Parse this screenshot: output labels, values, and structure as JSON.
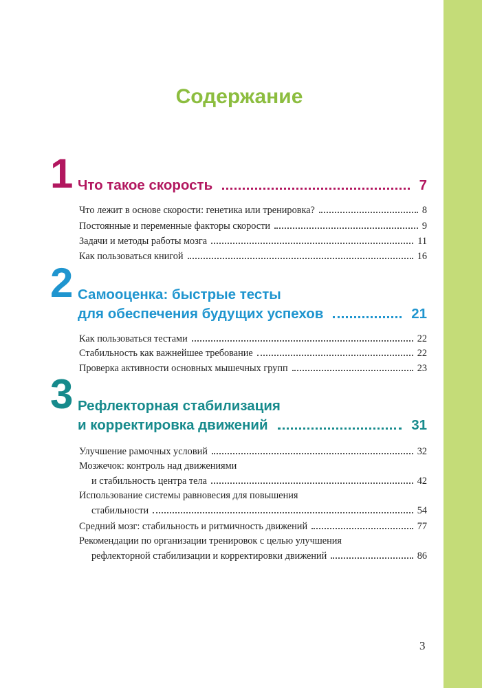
{
  "title": "Содержание",
  "chapters": [
    {
      "number": "1",
      "title_lines": [
        "Что такое скорость"
      ],
      "page": "7",
      "color": "#b2175f",
      "entries": [
        {
          "lines": [
            "Что лежит в основе скорости: генетика или тренировка?"
          ],
          "page": "8"
        },
        {
          "lines": [
            "Постоянные и переменные факторы скорости"
          ],
          "page": "9"
        },
        {
          "lines": [
            "Задачи и методы работы мозга"
          ],
          "page": "11"
        },
        {
          "lines": [
            "Как пользоваться книгой"
          ],
          "page": "16"
        }
      ]
    },
    {
      "number": "2",
      "title_lines": [
        "Самооценка: быстрые тесты",
        "для обеспечения будущих успехов"
      ],
      "page": "21",
      "color": "#1f95cf",
      "entries": [
        {
          "lines": [
            "Как пользоваться тестами"
          ],
          "page": "22"
        },
        {
          "lines": [
            "Стабильность как важнейшее требование"
          ],
          "page": "22"
        },
        {
          "lines": [
            "Проверка активности основных мышечных групп"
          ],
          "page": "23"
        }
      ]
    },
    {
      "number": "3",
      "title_lines": [
        "Рефлекторная стабилизация",
        "и корректировка движений"
      ],
      "page": "31",
      "color": "#168a8c",
      "entries": [
        {
          "lines": [
            "Улучшение рамочных условий"
          ],
          "page": "32"
        },
        {
          "lines": [
            "Мозжечок: контроль над движениями",
            "и стабильность центра тела"
          ],
          "page": "42"
        },
        {
          "lines": [
            "Использование системы равновесия для повышения",
            "стабильности"
          ],
          "page": "54"
        },
        {
          "lines": [
            "Средний мозг: стабильность и ритмичность движений"
          ],
          "page": "77"
        },
        {
          "lines": [
            "Рекомендации по организации тренировок с целью улучшения",
            "рефлекторной стабилизации и корректировки движений"
          ],
          "page": "86"
        }
      ]
    }
  ],
  "page_number": "3"
}
